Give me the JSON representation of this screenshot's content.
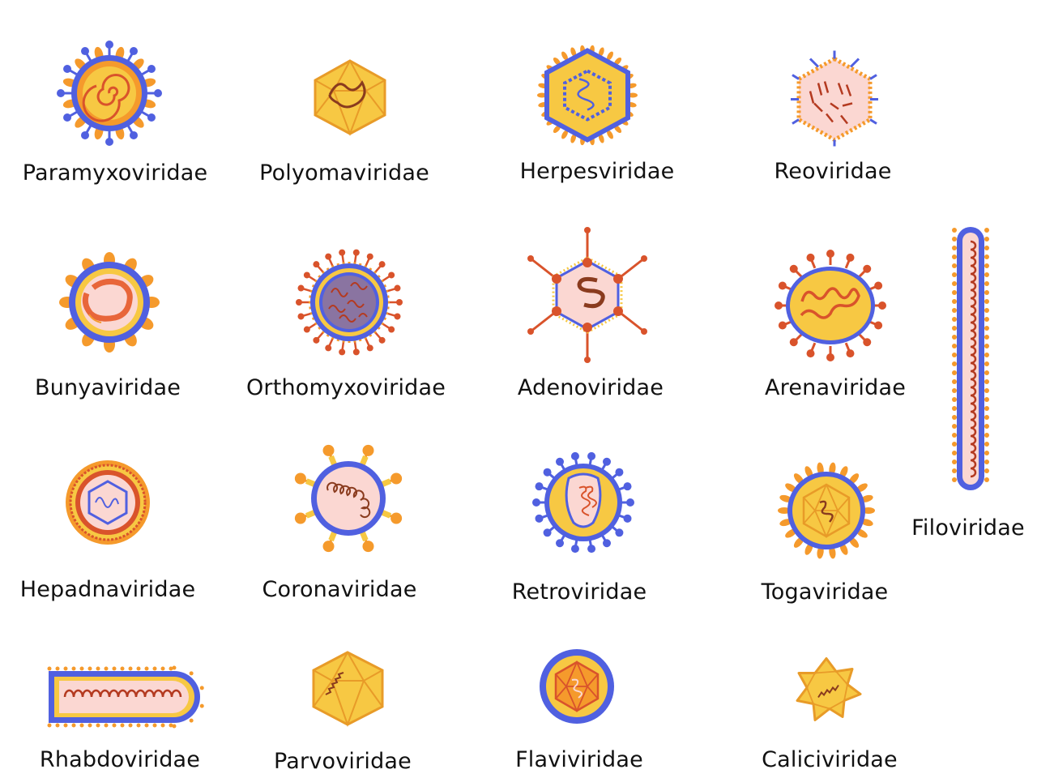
{
  "colors": {
    "envelope_blue": "#5060e0",
    "capsid_orange": "#f59a2c",
    "core_yellow": "#f7c843",
    "inner_pink": "#fbd7d2",
    "rna_red": "#b43a20",
    "spike_red": "#d9532b"
  },
  "viruses": [
    {
      "name": "Paramyxoviridae"
    },
    {
      "name": "Polyomaviridae"
    },
    {
      "name": "Herpesviridae"
    },
    {
      "name": "Reoviridae"
    },
    {
      "name": "Bunyaviridae"
    },
    {
      "name": "Orthomyxoviridae"
    },
    {
      "name": "Adenoviridae"
    },
    {
      "name": "Arenaviridae"
    },
    {
      "name": "Filoviridae"
    },
    {
      "name": "Hepadnaviridae"
    },
    {
      "name": "Coronaviridae"
    },
    {
      "name": "Retroviridae"
    },
    {
      "name": "Togaviridae"
    },
    {
      "name": "Rhabdoviridae"
    },
    {
      "name": "Parvoviridae"
    },
    {
      "name": "Flaviviridae"
    },
    {
      "name": "Caliciviridae"
    }
  ]
}
